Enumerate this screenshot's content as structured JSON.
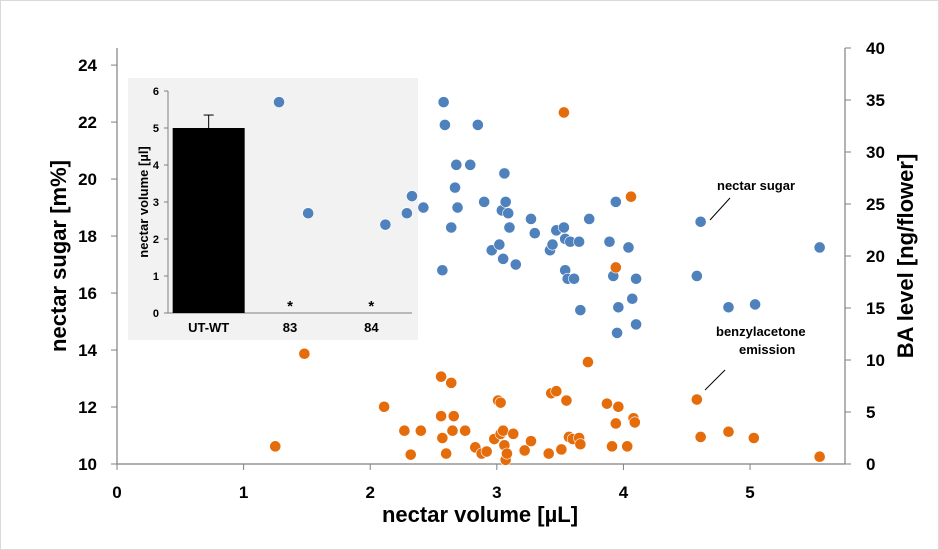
{
  "chart_data": [
    {
      "type": "scatter",
      "xlabel": "nectar volume [µL]",
      "ylabel": "nectar sugar [m%]",
      "y2label": "BA level [ng/flower]",
      "xlim": [
        0,
        5.6
      ],
      "ylim": [
        10,
        24.6
      ],
      "y2lim": [
        0,
        40
      ],
      "xticks": [
        "0",
        "1",
        "2",
        "3",
        "4",
        "5"
      ],
      "yticks": [
        "10",
        "12",
        "14",
        "16",
        "18",
        "20",
        "22",
        "24"
      ],
      "y2ticks": [
        "0",
        "5",
        "10",
        "15",
        "20",
        "25",
        "30",
        "35",
        "40"
      ],
      "grid": false,
      "colors": {
        "nectar_sugar": "#4f81bd",
        "benzylacetone": "#e46c0a"
      },
      "annotations": [
        {
          "text": "nectar sugar",
          "series": "nectar_sugar"
        },
        {
          "lines": [
            "benzylacetone",
            "emission"
          ],
          "series": "benzylacetone"
        }
      ],
      "series": [
        {
          "id": "nectar_sugar",
          "axis": "left",
          "points": [
            [
              1.28,
              22.7
            ],
            [
              1.51,
              18.8
            ],
            [
              2.12,
              18.4
            ],
            [
              2.29,
              18.8
            ],
            [
              2.33,
              19.4
            ],
            [
              2.42,
              19.0
            ],
            [
              2.58,
              22.7
            ],
            [
              2.59,
              21.9
            ],
            [
              2.64,
              18.3
            ],
            [
              2.67,
              19.7
            ],
            [
              2.68,
              20.5
            ],
            [
              2.69,
              19.0
            ],
            [
              2.79,
              20.5
            ],
            [
              2.85,
              21.9
            ],
            [
              2.9,
              19.2
            ],
            [
              2.96,
              17.5
            ],
            [
              3.02,
              17.7
            ],
            [
              3.04,
              18.9
            ],
            [
              3.05,
              17.2
            ],
            [
              3.06,
              20.2
            ],
            [
              3.07,
              19.2
            ],
            [
              3.09,
              18.8
            ],
            [
              3.1,
              18.3
            ],
            [
              3.15,
              17.0
            ],
            [
              3.27,
              18.6
            ],
            [
              3.3,
              18.1
            ],
            [
              3.42,
              17.5
            ],
            [
              3.44,
              17.7
            ],
            [
              3.47,
              18.2
            ],
            [
              3.53,
              18.3
            ],
            [
              3.54,
              17.9
            ],
            [
              3.54,
              16.8
            ],
            [
              3.56,
              16.5
            ],
            [
              3.58,
              17.8
            ],
            [
              3.65,
              17.8
            ],
            [
              3.66,
              15.4
            ],
            [
              3.73,
              18.6
            ],
            [
              3.89,
              17.8
            ],
            [
              3.92,
              16.6
            ],
            [
              3.94,
              19.2
            ],
            [
              3.95,
              14.6
            ],
            [
              3.96,
              15.5
            ],
            [
              4.04,
              17.6
            ],
            [
              4.07,
              15.8
            ],
            [
              4.1,
              14.9
            ],
            [
              4.1,
              16.5
            ],
            [
              4.58,
              16.6
            ],
            [
              4.61,
              18.5
            ],
            [
              4.83,
              15.5
            ],
            [
              5.04,
              15.6
            ],
            [
              5.55,
              17.6
            ],
            [
              2.57,
              16.8
            ],
            [
              3.61,
              16.5
            ]
          ]
        },
        {
          "id": "benzylacetone",
          "axis": "right",
          "points": [
            [
              1.25,
              1.7
            ],
            [
              1.48,
              10.6
            ],
            [
              2.11,
              5.5
            ],
            [
              2.27,
              3.2
            ],
            [
              2.32,
              0.9
            ],
            [
              2.4,
              3.2
            ],
            [
              2.56,
              8.4
            ],
            [
              2.56,
              4.6
            ],
            [
              2.57,
              2.5
            ],
            [
              2.6,
              1.0
            ],
            [
              2.64,
              7.8
            ],
            [
              2.65,
              3.2
            ],
            [
              2.66,
              4.6
            ],
            [
              2.75,
              3.2
            ],
            [
              2.83,
              1.6
            ],
            [
              2.88,
              1.0
            ],
            [
              2.92,
              1.2
            ],
            [
              2.98,
              2.4
            ],
            [
              3.01,
              6.1
            ],
            [
              3.03,
              2.9
            ],
            [
              3.03,
              5.9
            ],
            [
              3.05,
              3.2
            ],
            [
              3.06,
              1.8
            ],
            [
              3.07,
              0.4
            ],
            [
              3.08,
              1.0
            ],
            [
              3.13,
              2.9
            ],
            [
              3.22,
              1.3
            ],
            [
              3.27,
              2.2
            ],
            [
              3.41,
              1.0
            ],
            [
              3.43,
              6.8
            ],
            [
              3.47,
              7.0
            ],
            [
              3.51,
              1.4
            ],
            [
              3.53,
              33.8
            ],
            [
              3.55,
              6.1
            ],
            [
              3.57,
              2.6
            ],
            [
              3.6,
              2.4
            ],
            [
              3.65,
              2.5
            ],
            [
              3.66,
              1.9
            ],
            [
              3.72,
              9.8
            ],
            [
              3.87,
              5.8
            ],
            [
              3.91,
              1.7
            ],
            [
              3.94,
              18.9
            ],
            [
              3.94,
              3.9
            ],
            [
              3.96,
              5.5
            ],
            [
              4.03,
              1.7
            ],
            [
              4.06,
              25.7
            ],
            [
              4.08,
              4.4
            ],
            [
              4.09,
              4.0
            ],
            [
              4.58,
              6.2
            ],
            [
              4.61,
              2.6
            ],
            [
              4.83,
              3.1
            ],
            [
              5.03,
              2.5
            ],
            [
              5.55,
              0.7
            ]
          ]
        }
      ]
    },
    {
      "type": "bar",
      "inset": true,
      "ylabel": "nectar volume [µl]",
      "categories": [
        "UT-WT",
        "83",
        "84"
      ],
      "values": [
        5.0,
        0,
        0
      ],
      "error": [
        0.35,
        0,
        0
      ],
      "bar_labels": [
        "",
        "*",
        "*"
      ],
      "ylim": [
        0,
        6
      ],
      "yticks": [
        "0",
        "1",
        "2",
        "3",
        "4",
        "5",
        "6"
      ],
      "bar_color": "#000000"
    }
  ]
}
